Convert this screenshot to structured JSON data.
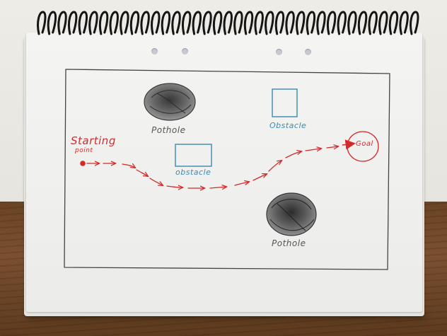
{
  "labels": {
    "starting": "Starting",
    "point": "point",
    "goal": "Goal",
    "pothole_top": "Pothole",
    "pothole_bottom": "Pothole",
    "obstacle_top": "Obstacle",
    "obstacle_mid": "obstacle"
  },
  "colors": {
    "path": "#d42a2a",
    "obstacle": "#3a8ab0",
    "pencil": "#555555",
    "border": "#444444"
  },
  "icons": {
    "start": "red-dot",
    "goal": "red-circle",
    "pothole": "scribbled-circle",
    "obstacle": "blue-square"
  }
}
